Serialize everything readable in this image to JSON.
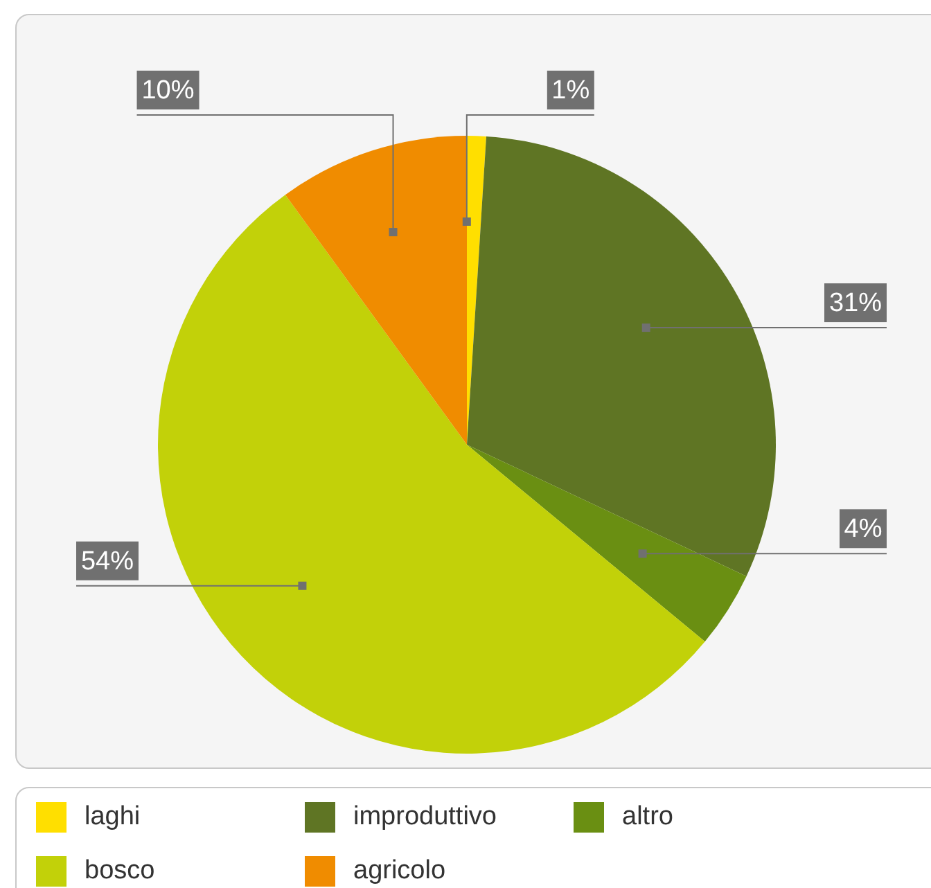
{
  "chart_data": {
    "type": "pie",
    "categories": [
      "laghi",
      "improduttivo",
      "altro",
      "bosco",
      "agricolo"
    ],
    "values": [
      1,
      31,
      4,
      54,
      10
    ],
    "colors": [
      "#ffdf00",
      "#5f7524",
      "#6a8f12",
      "#c2d109",
      "#f08c00"
    ],
    "value_labels": [
      "1%",
      "31%",
      "4%",
      "54%",
      "10%"
    ],
    "legend": "bottom"
  }
}
